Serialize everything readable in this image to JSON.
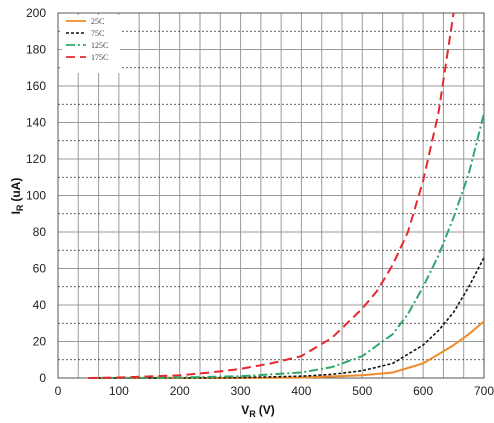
{
  "chart_data": {
    "type": "line",
    "xlabel": {
      "main": "V",
      "sub": "R",
      "unit": "(V)"
    },
    "ylabel": {
      "main": "I",
      "sub": "R",
      "unit": "(uA)"
    },
    "xlim": [
      0,
      700
    ],
    "ylim": [
      0,
      200
    ],
    "x_ticks": [
      "0",
      "100",
      "200",
      "300",
      "400",
      "500",
      "600",
      "700"
    ],
    "y_ticks": [
      "0",
      "20",
      "40",
      "60",
      "80",
      "100",
      "120",
      "140",
      "160",
      "180",
      "200"
    ],
    "grid": true,
    "legend_position": "top-left",
    "series": [
      {
        "name": "25C",
        "color": "#f08a2a",
        "dash": "solid",
        "x": [
          50,
          100,
          200,
          300,
          400,
          500,
          550,
          600,
          625,
          650,
          675,
          700
        ],
        "y": [
          0,
          0,
          0,
          0,
          0.2,
          1.5,
          3,
          8,
          13,
          18,
          24,
          31
        ]
      },
      {
        "name": "75C",
        "color": "#111111",
        "dash": "short",
        "x": [
          50,
          100,
          200,
          300,
          400,
          450,
          500,
          550,
          600,
          625,
          650,
          675,
          700
        ],
        "y": [
          0,
          0,
          0,
          0.2,
          1,
          2,
          4,
          8,
          18,
          26,
          36,
          50,
          66
        ]
      },
      {
        "name": "125C",
        "color": "#2ea86b",
        "dash": "dashdot",
        "x": [
          50,
          100,
          200,
          300,
          400,
          450,
          500,
          550,
          575,
          600,
          625,
          650,
          675,
          700
        ],
        "y": [
          0,
          0,
          0.3,
          1,
          3,
          6,
          12,
          24,
          35,
          50,
          67,
          88,
          112,
          145
        ]
      },
      {
        "name": "175C",
        "color": "#e5282e",
        "dash": "long",
        "x": [
          50,
          100,
          200,
          250,
          300,
          350,
          400,
          450,
          500,
          525,
          550,
          575,
          600,
          625,
          650
        ],
        "y": [
          0,
          0.3,
          1.5,
          3,
          5,
          8,
          12,
          22,
          38,
          48,
          62,
          80,
          108,
          145,
          200
        ]
      }
    ]
  }
}
